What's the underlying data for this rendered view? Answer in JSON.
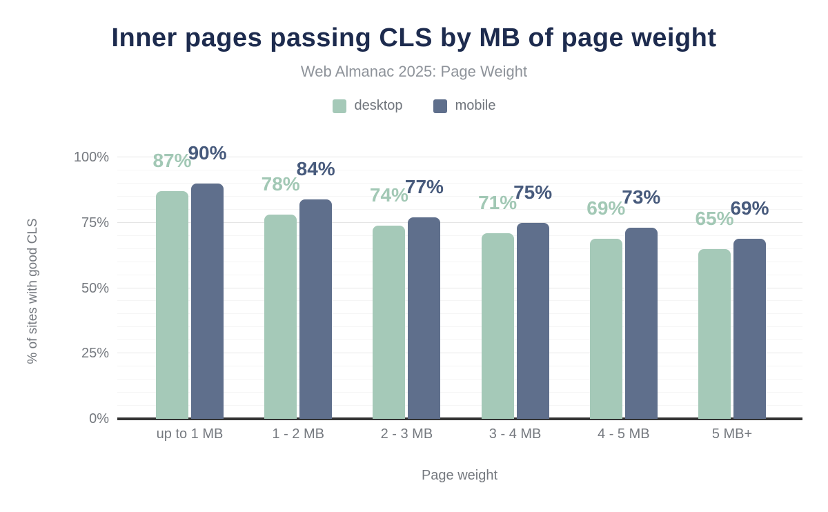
{
  "header": {
    "title": "Inner pages passing CLS by MB of page weight",
    "subtitle": "Web Almanac 2025: Page Weight"
  },
  "legend": {
    "items": [
      {
        "label": "desktop",
        "color": "#a5c9b8"
      },
      {
        "label": "mobile",
        "color": "#5f6f8c"
      }
    ]
  },
  "chart_data": {
    "type": "bar",
    "title": "Inner pages passing CLS by MB of page weight",
    "subtitle": "Web Almanac 2025: Page Weight",
    "categories": [
      "up to 1 MB",
      "1 - 2 MB",
      "2 - 3 MB",
      "3 - 4 MB",
      "4 - 5 MB",
      "5 MB+"
    ],
    "series": [
      {
        "name": "desktop",
        "color": "#a5c9b8",
        "label_color": "#a2c8b5",
        "values": [
          87,
          78,
          74,
          71,
          69,
          65
        ],
        "data_labels": [
          "87%",
          "78%",
          "74%",
          "71%",
          "69%",
          "65%"
        ]
      },
      {
        "name": "mobile",
        "color": "#5f6f8c",
        "label_color": "#475a7c",
        "values": [
          90,
          84,
          77,
          75,
          73,
          69
        ],
        "data_labels": [
          "90%",
          "84%",
          "77%",
          "75%",
          "73%",
          "69%"
        ]
      }
    ],
    "xlabel": "Page weight",
    "ylabel": "% of sites with good CLS",
    "ylim": [
      0,
      100
    ],
    "yticks": [
      {
        "value": 0,
        "label": "0%"
      },
      {
        "value": 25,
        "label": "25%"
      },
      {
        "value": 50,
        "label": "50%"
      },
      {
        "value": 75,
        "label": "75%"
      },
      {
        "value": 100,
        "label": "100%"
      }
    ],
    "grid": {
      "major_every": 25,
      "minor_every": 5,
      "axis_color": "#333333"
    },
    "legend_position": "top",
    "data_labels_visible": true
  }
}
